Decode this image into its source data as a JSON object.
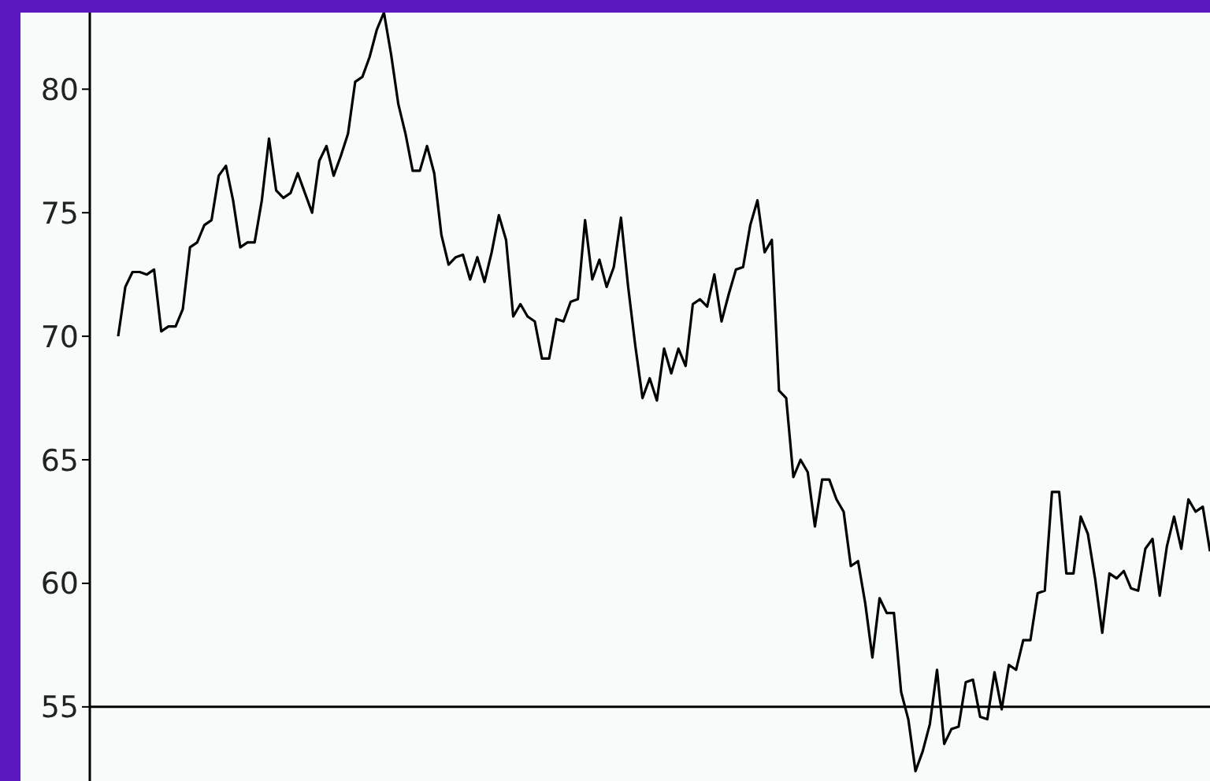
{
  "chart_data": {
    "type": "line",
    "marker": "none",
    "line_style": "solid",
    "grid": false,
    "legend": false,
    "tick_labels": "y",
    "categories": [
      null,
      null,
      null,
      null,
      null,
      null,
      null,
      null,
      null,
      null,
      null,
      null,
      null,
      null,
      null,
      null,
      null,
      null,
      null,
      null,
      null,
      null,
      null,
      null,
      null,
      null,
      null,
      null,
      null,
      null,
      null,
      null,
      null,
      null,
      null,
      null,
      null,
      null,
      null,
      null,
      null,
      null,
      null,
      null,
      null,
      null,
      null,
      null,
      null,
      null,
      null,
      null,
      null,
      null,
      null,
      null,
      null,
      null,
      null,
      null,
      null,
      null,
      null,
      null,
      null,
      null,
      null,
      null,
      null,
      null,
      null,
      null,
      null,
      null,
      null,
      null,
      null,
      null,
      null,
      null,
      null,
      null,
      null,
      null,
      null,
      null,
      null,
      null,
      null,
      null,
      null,
      null,
      null,
      null,
      null,
      null,
      null,
      null,
      null,
      null,
      null,
      null,
      null,
      null,
      null,
      null,
      null,
      null,
      null,
      null,
      null,
      null,
      null,
      null,
      null,
      null,
      null,
      null,
      null,
      null,
      null,
      null,
      null,
      null,
      null,
      null,
      null,
      null,
      null,
      null,
      null,
      null,
      null,
      null,
      null,
      null,
      null,
      null,
      null,
      null,
      null,
      null,
      null,
      null,
      null,
      null,
      null,
      null,
      null,
      null,
      null,
      null,
      null
    ],
    "series": [
      {
        "color": "#000000",
        "values": [
          70.0,
          72.0,
          72.6,
          72.6,
          72.5,
          72.7,
          70.2,
          70.4,
          70.4,
          71.1,
          73.6,
          73.8,
          74.5,
          74.7,
          76.5,
          76.9,
          75.5,
          73.6,
          73.8,
          73.8,
          75.5,
          78.0,
          75.9,
          75.6,
          75.8,
          76.6,
          75.8,
          75.0,
          77.1,
          77.7,
          76.5,
          77.3,
          78.2,
          80.3,
          80.5,
          81.3,
          82.4,
          83.1,
          81.4,
          79.4,
          78.2,
          76.7,
          76.7,
          77.7,
          76.6,
          74.1,
          72.9,
          73.2,
          73.3,
          72.3,
          73.2,
          72.2,
          73.4,
          74.9,
          73.9,
          70.8,
          71.3,
          70.8,
          70.6,
          69.1,
          69.1,
          70.7,
          70.6,
          71.4,
          71.5,
          74.7,
          72.3,
          73.1,
          72.0,
          72.8,
          74.8,
          72.0,
          69.6,
          67.5,
          68.3,
          67.4,
          69.5,
          68.5,
          69.5,
          68.8,
          71.3,
          71.5,
          71.2,
          72.5,
          70.6,
          71.7,
          72.7,
          72.8,
          74.5,
          75.5,
          73.4,
          73.9,
          67.8,
          67.5,
          64.3,
          65.0,
          64.5,
          62.3,
          64.2,
          64.2,
          63.4,
          62.9,
          60.7,
          60.9,
          59.2,
          57.0,
          59.4,
          58.8,
          58.8,
          55.6,
          54.5,
          52.4,
          53.2,
          54.3,
          56.5,
          53.5,
          54.1,
          54.2,
          56.0,
          56.1,
          54.6,
          54.5,
          56.4,
          54.9,
          56.7,
          56.5,
          57.7,
          57.7,
          59.6,
          59.7,
          63.7,
          63.7,
          60.4,
          60.4,
          62.7,
          62.0,
          60.2,
          58.0,
          60.4,
          60.2,
          60.5,
          59.8,
          59.7,
          61.4,
          61.8,
          59.5,
          61.5,
          62.7,
          61.4,
          63.4,
          62.9,
          63.1,
          61.3
        ]
      }
    ],
    "ylim": [
      52,
      83.1
    ],
    "yticks": [
      55,
      60,
      65,
      70,
      75,
      80
    ],
    "ref_lines": [
      {
        "axis": "y",
        "value": 55,
        "color": "#000000"
      }
    ]
  }
}
